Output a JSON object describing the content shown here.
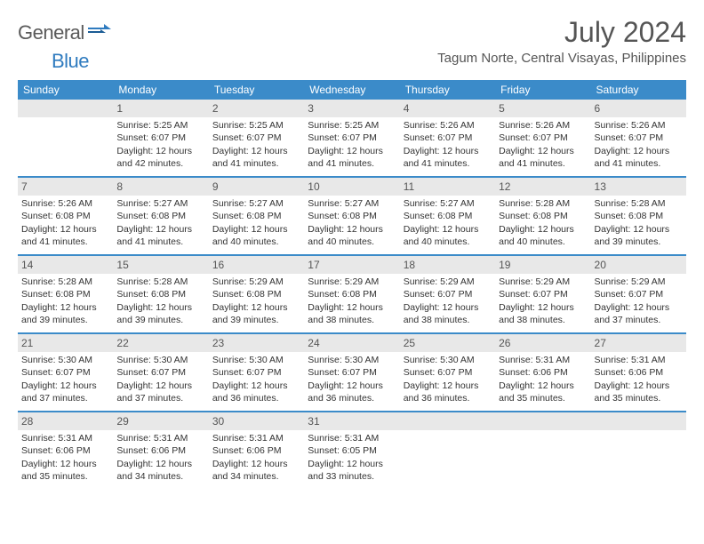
{
  "brand": {
    "general": "General",
    "blue": "Blue"
  },
  "title": "July 2024",
  "location": "Tagum Norte, Central Visayas, Philippines",
  "colors": {
    "header_bg": "#3b8bc9",
    "header_text": "#ffffff",
    "daynum_bg": "#e8e8e8",
    "text": "#333333",
    "brand_gray": "#5a5a5a",
    "brand_blue": "#2f7bbf",
    "page_bg": "#ffffff",
    "row_divider": "#3b8bc9"
  },
  "typography": {
    "month_title_size": 32,
    "location_size": 15,
    "day_header_size": 12,
    "body_size": 10.5,
    "font_family": "Arial"
  },
  "day_headers": [
    "Sunday",
    "Monday",
    "Tuesday",
    "Wednesday",
    "Thursday",
    "Friday",
    "Saturday"
  ],
  "weeks": [
    [
      {
        "day": "",
        "sunrise": "",
        "sunset": "",
        "daylight": ""
      },
      {
        "day": "1",
        "sunrise": "Sunrise: 5:25 AM",
        "sunset": "Sunset: 6:07 PM",
        "daylight": "Daylight: 12 hours and 42 minutes."
      },
      {
        "day": "2",
        "sunrise": "Sunrise: 5:25 AM",
        "sunset": "Sunset: 6:07 PM",
        "daylight": "Daylight: 12 hours and 41 minutes."
      },
      {
        "day": "3",
        "sunrise": "Sunrise: 5:25 AM",
        "sunset": "Sunset: 6:07 PM",
        "daylight": "Daylight: 12 hours and 41 minutes."
      },
      {
        "day": "4",
        "sunrise": "Sunrise: 5:26 AM",
        "sunset": "Sunset: 6:07 PM",
        "daylight": "Daylight: 12 hours and 41 minutes."
      },
      {
        "day": "5",
        "sunrise": "Sunrise: 5:26 AM",
        "sunset": "Sunset: 6:07 PM",
        "daylight": "Daylight: 12 hours and 41 minutes."
      },
      {
        "day": "6",
        "sunrise": "Sunrise: 5:26 AM",
        "sunset": "Sunset: 6:07 PM",
        "daylight": "Daylight: 12 hours and 41 minutes."
      }
    ],
    [
      {
        "day": "7",
        "sunrise": "Sunrise: 5:26 AM",
        "sunset": "Sunset: 6:08 PM",
        "daylight": "Daylight: 12 hours and 41 minutes."
      },
      {
        "day": "8",
        "sunrise": "Sunrise: 5:27 AM",
        "sunset": "Sunset: 6:08 PM",
        "daylight": "Daylight: 12 hours and 41 minutes."
      },
      {
        "day": "9",
        "sunrise": "Sunrise: 5:27 AM",
        "sunset": "Sunset: 6:08 PM",
        "daylight": "Daylight: 12 hours and 40 minutes."
      },
      {
        "day": "10",
        "sunrise": "Sunrise: 5:27 AM",
        "sunset": "Sunset: 6:08 PM",
        "daylight": "Daylight: 12 hours and 40 minutes."
      },
      {
        "day": "11",
        "sunrise": "Sunrise: 5:27 AM",
        "sunset": "Sunset: 6:08 PM",
        "daylight": "Daylight: 12 hours and 40 minutes."
      },
      {
        "day": "12",
        "sunrise": "Sunrise: 5:28 AM",
        "sunset": "Sunset: 6:08 PM",
        "daylight": "Daylight: 12 hours and 40 minutes."
      },
      {
        "day": "13",
        "sunrise": "Sunrise: 5:28 AM",
        "sunset": "Sunset: 6:08 PM",
        "daylight": "Daylight: 12 hours and 39 minutes."
      }
    ],
    [
      {
        "day": "14",
        "sunrise": "Sunrise: 5:28 AM",
        "sunset": "Sunset: 6:08 PM",
        "daylight": "Daylight: 12 hours and 39 minutes."
      },
      {
        "day": "15",
        "sunrise": "Sunrise: 5:28 AM",
        "sunset": "Sunset: 6:08 PM",
        "daylight": "Daylight: 12 hours and 39 minutes."
      },
      {
        "day": "16",
        "sunrise": "Sunrise: 5:29 AM",
        "sunset": "Sunset: 6:08 PM",
        "daylight": "Daylight: 12 hours and 39 minutes."
      },
      {
        "day": "17",
        "sunrise": "Sunrise: 5:29 AM",
        "sunset": "Sunset: 6:08 PM",
        "daylight": "Daylight: 12 hours and 38 minutes."
      },
      {
        "day": "18",
        "sunrise": "Sunrise: 5:29 AM",
        "sunset": "Sunset: 6:07 PM",
        "daylight": "Daylight: 12 hours and 38 minutes."
      },
      {
        "day": "19",
        "sunrise": "Sunrise: 5:29 AM",
        "sunset": "Sunset: 6:07 PM",
        "daylight": "Daylight: 12 hours and 38 minutes."
      },
      {
        "day": "20",
        "sunrise": "Sunrise: 5:29 AM",
        "sunset": "Sunset: 6:07 PM",
        "daylight": "Daylight: 12 hours and 37 minutes."
      }
    ],
    [
      {
        "day": "21",
        "sunrise": "Sunrise: 5:30 AM",
        "sunset": "Sunset: 6:07 PM",
        "daylight": "Daylight: 12 hours and 37 minutes."
      },
      {
        "day": "22",
        "sunrise": "Sunrise: 5:30 AM",
        "sunset": "Sunset: 6:07 PM",
        "daylight": "Daylight: 12 hours and 37 minutes."
      },
      {
        "day": "23",
        "sunrise": "Sunrise: 5:30 AM",
        "sunset": "Sunset: 6:07 PM",
        "daylight": "Daylight: 12 hours and 36 minutes."
      },
      {
        "day": "24",
        "sunrise": "Sunrise: 5:30 AM",
        "sunset": "Sunset: 6:07 PM",
        "daylight": "Daylight: 12 hours and 36 minutes."
      },
      {
        "day": "25",
        "sunrise": "Sunrise: 5:30 AM",
        "sunset": "Sunset: 6:07 PM",
        "daylight": "Daylight: 12 hours and 36 minutes."
      },
      {
        "day": "26",
        "sunrise": "Sunrise: 5:31 AM",
        "sunset": "Sunset: 6:06 PM",
        "daylight": "Daylight: 12 hours and 35 minutes."
      },
      {
        "day": "27",
        "sunrise": "Sunrise: 5:31 AM",
        "sunset": "Sunset: 6:06 PM",
        "daylight": "Daylight: 12 hours and 35 minutes."
      }
    ],
    [
      {
        "day": "28",
        "sunrise": "Sunrise: 5:31 AM",
        "sunset": "Sunset: 6:06 PM",
        "daylight": "Daylight: 12 hours and 35 minutes."
      },
      {
        "day": "29",
        "sunrise": "Sunrise: 5:31 AM",
        "sunset": "Sunset: 6:06 PM",
        "daylight": "Daylight: 12 hours and 34 minutes."
      },
      {
        "day": "30",
        "sunrise": "Sunrise: 5:31 AM",
        "sunset": "Sunset: 6:06 PM",
        "daylight": "Daylight: 12 hours and 34 minutes."
      },
      {
        "day": "31",
        "sunrise": "Sunrise: 5:31 AM",
        "sunset": "Sunset: 6:05 PM",
        "daylight": "Daylight: 12 hours and 33 minutes."
      },
      {
        "day": "",
        "sunrise": "",
        "sunset": "",
        "daylight": ""
      },
      {
        "day": "",
        "sunrise": "",
        "sunset": "",
        "daylight": ""
      },
      {
        "day": "",
        "sunrise": "",
        "sunset": "",
        "daylight": ""
      }
    ]
  ]
}
